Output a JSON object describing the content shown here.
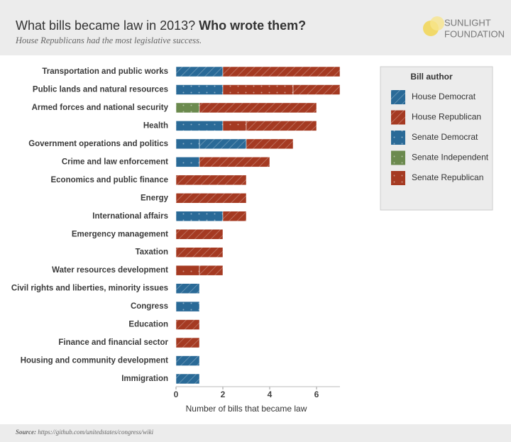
{
  "chart_data": {
    "type": "stacked-bar-horizontal",
    "title": "What bills became law in 2013?",
    "title_emphasis": "Who wrote them?",
    "subtitle": "House Republicans had the most legislative success.",
    "logo_top": "SUNLIGHT",
    "logo_bottom": "FOUNDATION",
    "source_label": "Source:",
    "source": "https://github.com/unitedstates/congress/wiki",
    "xlabel": "Number of bills that became law",
    "legend_title": "Bill author",
    "legend_position": "upper right",
    "xlim": [
      0,
      7
    ],
    "xticks": [
      0,
      2,
      4,
      6
    ],
    "categories": [
      "Transportation and public works",
      "Public lands and natural resources",
      "Armed forces and national security",
      "Health",
      "Government operations and politics",
      "Crime and law enforcement",
      "Economics and public finance",
      "Energy",
      "International affairs",
      "Emergency management",
      "Taxation",
      "Water resources development",
      "Civil rights and liberties, minority issues",
      "Congress",
      "Education",
      "Finance and financial sector",
      "Housing and community development",
      "Immigration"
    ],
    "series": [
      {
        "name": "House Democrat",
        "color": "#2a6a97",
        "pattern": "hatch",
        "values": [
          2,
          0,
          0,
          0,
          2,
          0,
          0,
          0,
          0,
          0,
          0,
          0,
          1,
          0,
          0,
          0,
          1,
          1
        ]
      },
      {
        "name": "House Republican",
        "color": "#a53a22",
        "pattern": "hatch",
        "values": [
          5,
          2,
          5,
          3,
          2,
          3,
          3,
          3,
          1,
          2,
          2,
          1,
          0,
          0,
          1,
          1,
          0,
          0
        ]
      },
      {
        "name": "Senate Democrat",
        "color": "#2a6a97",
        "pattern": "dots",
        "values": [
          0,
          2,
          0,
          2,
          1,
          1,
          0,
          0,
          2,
          0,
          0,
          0,
          0,
          1,
          0,
          0,
          0,
          0
        ]
      },
      {
        "name": "Senate Independent",
        "color": "#6b8a4e",
        "pattern": "dots",
        "values": [
          0,
          0,
          1,
          0,
          0,
          0,
          0,
          0,
          0,
          0,
          0,
          0,
          0,
          0,
          0,
          0,
          0,
          0
        ]
      },
      {
        "name": "Senate Republican",
        "color": "#a53a22",
        "pattern": "dots",
        "values": [
          0,
          3,
          0,
          1,
          0,
          0,
          0,
          0,
          0,
          0,
          0,
          1,
          0,
          0,
          0,
          0,
          0,
          0
        ]
      }
    ]
  }
}
